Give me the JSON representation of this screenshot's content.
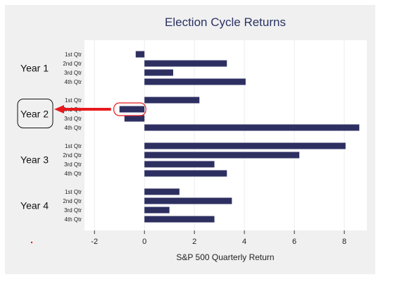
{
  "chart_data": {
    "type": "bar",
    "orientation": "horizontal",
    "title": "Election Cycle Returns",
    "xlabel": "S&P 500 Quarterly Return",
    "ylabel": "",
    "xlim": [
      -2.4,
      8.9
    ],
    "xticks": [
      -2,
      0,
      2,
      4,
      6,
      8
    ],
    "grid": "vertical",
    "bar_color": "#2e2f61",
    "groups": [
      {
        "name": "Year 1",
        "categories": [
          "1st Qtr",
          "2nd Qtr",
          "3rd Qtr",
          "4th Qtr"
        ],
        "values": [
          -0.35,
          3.3,
          1.15,
          4.05
        ]
      },
      {
        "name": "Year 2",
        "highlighted": true,
        "categories": [
          "1st Qtr",
          "2nd Qtr",
          "3rd Qtr",
          "4th Qtr"
        ],
        "values": [
          2.2,
          -1.0,
          -0.8,
          8.6
        ]
      },
      {
        "name": "Year 3",
        "categories": [
          "1st Qtr",
          "2nd Qtr",
          "3rd Qtr",
          "4th Qtr"
        ],
        "values": [
          8.05,
          6.2,
          2.8,
          3.3
        ]
      },
      {
        "name": "Year 4",
        "categories": [
          "1st Qtr",
          "2nd Qtr",
          "3rd Qtr",
          "4th Qtr"
        ],
        "values": [
          1.4,
          3.5,
          1.0,
          2.8
        ]
      }
    ],
    "annotation": {
      "target_group": 1,
      "target_bar": 1,
      "color": "#e8191c"
    }
  }
}
